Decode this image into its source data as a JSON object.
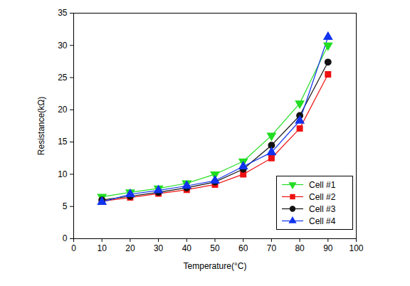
{
  "chart_data": {
    "type": "line",
    "x_label": "Temperature(°C)",
    "y_label": "Resistance(kΩ)",
    "x": [
      10,
      20,
      30,
      40,
      50,
      60,
      70,
      80,
      90
    ],
    "series": [
      {
        "name": "Cell #1",
        "color": "#22dd22",
        "marker": "triangle-down",
        "values": [
          6.5,
          7.2,
          7.8,
          8.6,
          10.0,
          12.0,
          16.0,
          21.0,
          30.0
        ]
      },
      {
        "name": "Cell #2",
        "color": "#ee1111",
        "marker": "square",
        "values": [
          5.8,
          6.4,
          7.0,
          7.6,
          8.4,
          10.0,
          12.5,
          17.1,
          25.5
        ]
      },
      {
        "name": "Cell #3",
        "color": "#111111",
        "marker": "circle",
        "values": [
          6.0,
          6.6,
          7.2,
          7.9,
          8.8,
          10.8,
          14.5,
          19.1,
          27.4
        ]
      },
      {
        "name": "Cell #4",
        "color": "#1133ee",
        "marker": "triangle-up",
        "values": [
          5.7,
          6.9,
          7.5,
          8.2,
          9.0,
          11.2,
          13.4,
          18.3,
          31.3
        ]
      }
    ],
    "xlim": [
      0,
      100
    ],
    "xticks": [
      0,
      10,
      20,
      30,
      40,
      50,
      60,
      70,
      80,
      90,
      100
    ],
    "ylim": [
      0,
      35
    ],
    "yticks": [
      0,
      5,
      10,
      15,
      20,
      25,
      30,
      35
    ],
    "legend": "lower right",
    "grid": false
  }
}
